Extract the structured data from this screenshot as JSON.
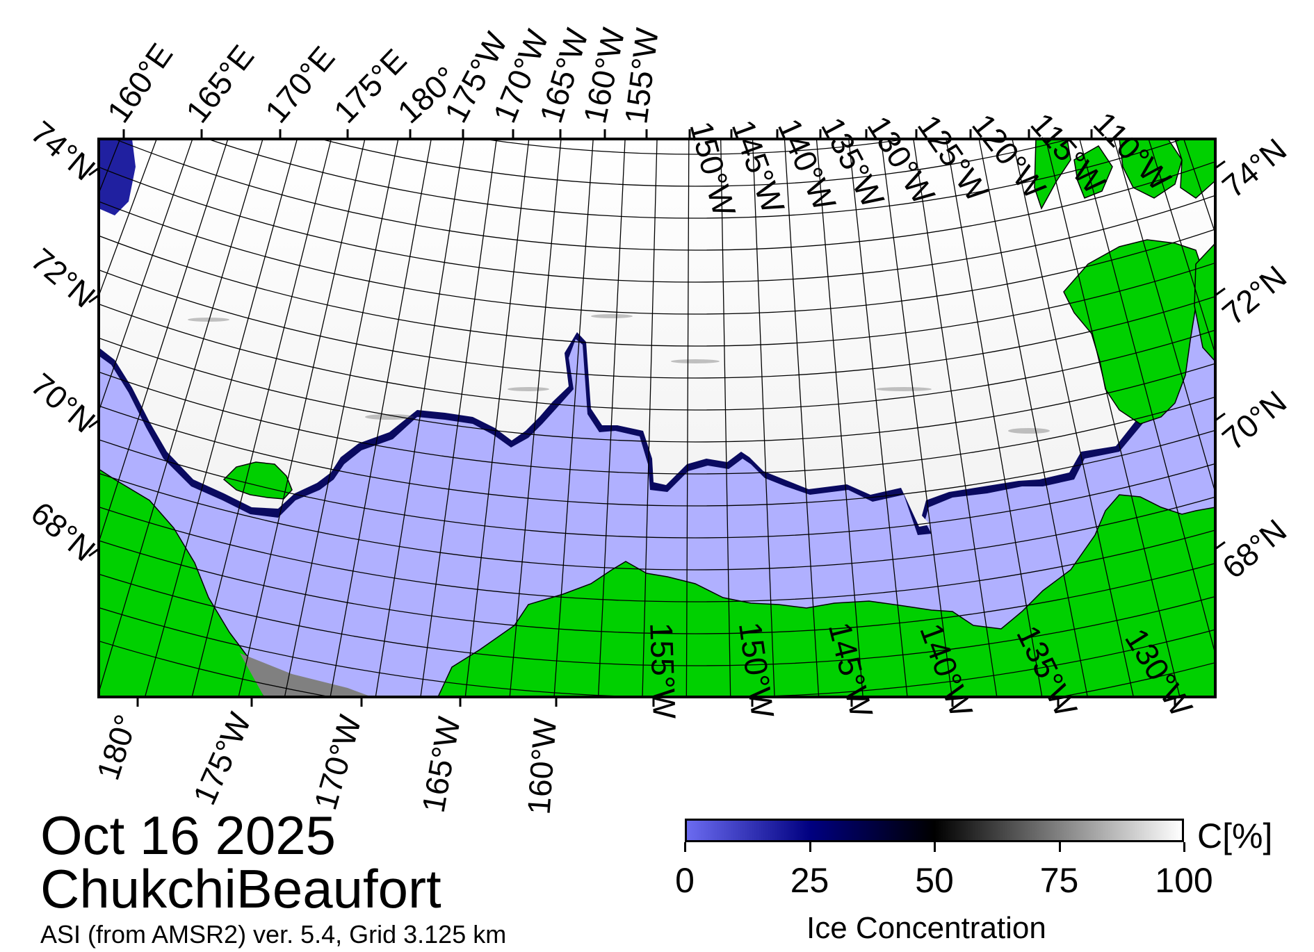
{
  "date": "Oct 16 2025",
  "region": "ChukchiBeaufort",
  "product": "ASI (from AMSR2) ver. 5.4,  Grid 3.125 km",
  "colorbar": {
    "title": "Ice Concentration",
    "unit": "C[%]",
    "ticks": [
      "0",
      "25",
      "50",
      "75",
      "100"
    ],
    "colors": [
      "#6b6bf0",
      "#000080",
      "#000000",
      "#808080",
      "#ffffff"
    ]
  },
  "map": {
    "colors": {
      "land": "#00d000",
      "ocean": "#b0b0ff",
      "ice": "#ffffff",
      "missing": "#808080"
    },
    "top_labels": [
      "160°E",
      "165°E",
      "170°E",
      "175°E",
      "180°",
      "175°W",
      "170°W",
      "165°W",
      "160°W",
      "155°W",
      "150°W",
      "145°W",
      "140°W",
      "135°W",
      "130°W",
      "125°W",
      "120°W",
      "115°W",
      "110°W"
    ],
    "bottom_labels": [
      "180°",
      "175°W",
      "170°W",
      "165°W",
      "160°W",
      "155°W",
      "150°W",
      "145°W",
      "140°W",
      "135°W",
      "130°W"
    ],
    "left_labels": [
      "74°N",
      "72°N",
      "70°N",
      "68°N"
    ],
    "right_labels": [
      "74°N",
      "72°N",
      "70°N",
      "68°N"
    ]
  }
}
